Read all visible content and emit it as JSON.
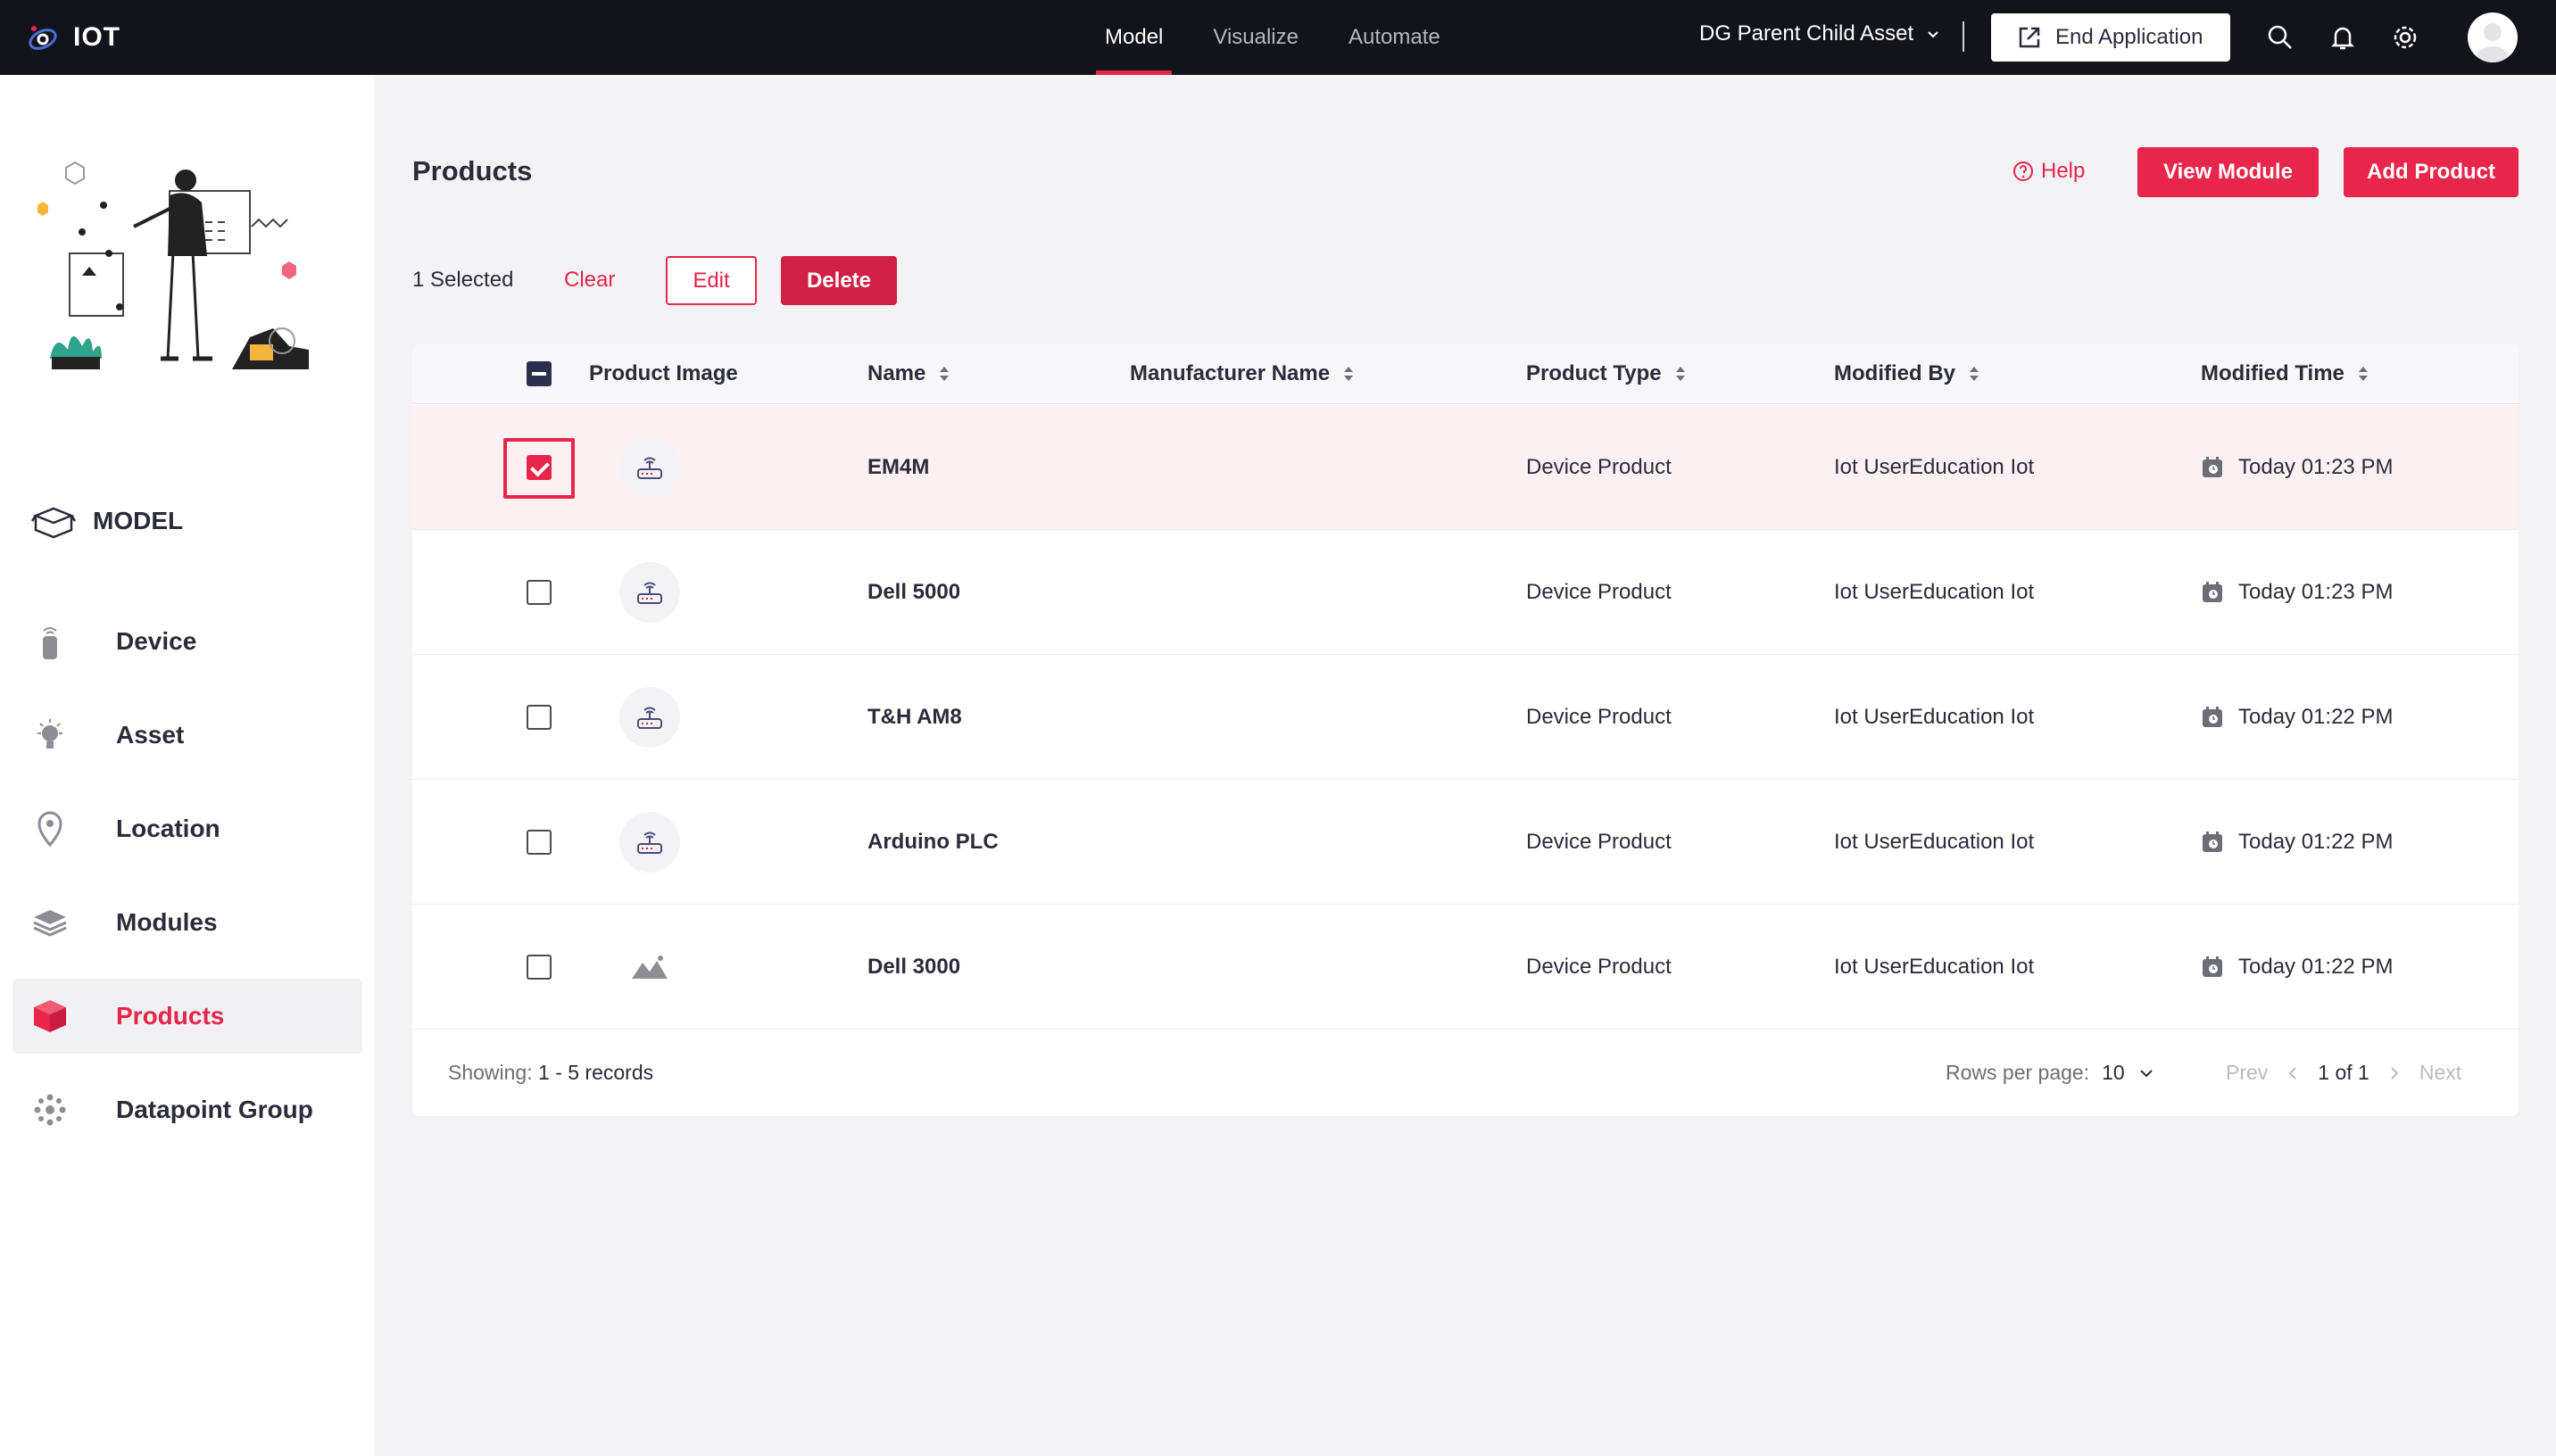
{
  "topbar": {
    "app_name": "IOT",
    "nav": [
      {
        "label": "Model",
        "active": true
      },
      {
        "label": "Visualize",
        "active": false
      },
      {
        "label": "Automate",
        "active": false
      }
    ],
    "app_select": "DG Parent Child Asset",
    "end_app_label": "End Application",
    "accent": "#e8254a",
    "bar_bg": "#13131b"
  },
  "sidebar": {
    "section_label": "MODEL",
    "items": [
      {
        "label": "Device",
        "icon": "device-icon",
        "active": false
      },
      {
        "label": "Asset",
        "icon": "bulb-icon",
        "active": false
      },
      {
        "label": "Location",
        "icon": "location-pin-icon",
        "active": false
      },
      {
        "label": "Modules",
        "icon": "layers-icon",
        "active": false
      },
      {
        "label": "Products",
        "icon": "cube-icon",
        "active": true
      },
      {
        "label": "Datapoint Group",
        "icon": "datapoint-icon",
        "active": false
      }
    ]
  },
  "main": {
    "title": "Products",
    "help_label": "Help",
    "view_module_label": "View Module",
    "add_product_label": "Add Product",
    "selection": {
      "count_text": "1 Selected",
      "clear_label": "Clear",
      "edit_label": "Edit",
      "delete_label": "Delete"
    },
    "columns": [
      "Product Image",
      "Name",
      "Manufacturer Name",
      "Product Type",
      "Modified By",
      "Modified Time"
    ],
    "rows": [
      {
        "name": "EM4M",
        "manufacturer": "",
        "type": "Device Product",
        "modified_by": "Iot UserEducation Iot",
        "modified_time": "Today 01:23 PM",
        "checked": true,
        "image": "router-icon"
      },
      {
        "name": "Dell 5000",
        "manufacturer": "",
        "type": "Device Product",
        "modified_by": "Iot UserEducation Iot",
        "modified_time": "Today 01:23 PM",
        "checked": false,
        "image": "router-icon"
      },
      {
        "name": "T&H AM8",
        "manufacturer": "",
        "type": "Device Product",
        "modified_by": "Iot UserEducation Iot",
        "modified_time": "Today 01:22 PM",
        "checked": false,
        "image": "router-icon"
      },
      {
        "name": "Arduino PLC",
        "manufacturer": "",
        "type": "Device Product",
        "modified_by": "Iot UserEducation Iot",
        "modified_time": "Today 01:22 PM",
        "checked": false,
        "image": "router-icon"
      },
      {
        "name": "Dell 3000",
        "manufacturer": "",
        "type": "Device Product",
        "modified_by": "Iot UserEducation Iot",
        "modified_time": "Today 01:22 PM",
        "checked": false,
        "image": "image-placeholder-icon"
      }
    ],
    "footer": {
      "showing_label": "Showing:",
      "showing_range": "1 - 5 records",
      "rows_per_page_label": "Rows per page:",
      "rows_per_page_value": "10",
      "prev_label": "Prev",
      "page_text": "1 of 1",
      "next_label": "Next"
    }
  }
}
